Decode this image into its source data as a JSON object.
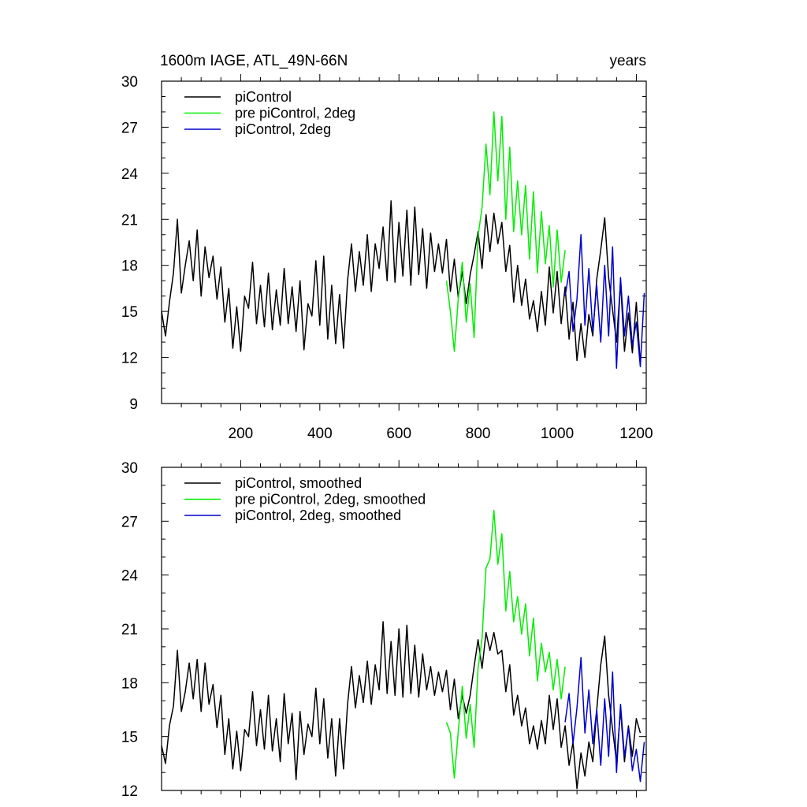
{
  "header": {
    "title_left": "1600m IAGE, ATL_49N-66N",
    "title_right": "years"
  },
  "colors": {
    "picontrol": "#000000",
    "pre_picontrol_2deg": "#00ee00",
    "picontrol_2deg": "#0000cc"
  },
  "chart_data": [
    {
      "type": "line",
      "title": "1600m IAGE, ATL_49N-66N",
      "title_right": "years",
      "xlim": [
        0,
        1225
      ],
      "ylim": [
        9,
        30
      ],
      "xticks": [
        200,
        400,
        600,
        800,
        1000,
        1200
      ],
      "xtick_labels": [
        "200",
        "400",
        "600",
        "800",
        "1000",
        "1200"
      ],
      "yticks": [
        9,
        12,
        15,
        18,
        21,
        24,
        27,
        30
      ],
      "ytick_labels": [
        "9",
        "12",
        "15",
        "18",
        "21",
        "24",
        "27",
        "30"
      ],
      "legend_position": "top-left",
      "grid": false,
      "series": [
        {
          "name": "piControl",
          "color": "#000000",
          "x": [
            0,
            10,
            20,
            30,
            40,
            50,
            60,
            70,
            80,
            90,
            100,
            110,
            120,
            130,
            140,
            150,
            160,
            170,
            180,
            190,
            200,
            210,
            220,
            230,
            240,
            250,
            260,
            270,
            280,
            290,
            300,
            310,
            320,
            330,
            340,
            350,
            360,
            370,
            380,
            390,
            400,
            410,
            420,
            430,
            440,
            450,
            460,
            470,
            480,
            490,
            500,
            510,
            520,
            530,
            540,
            550,
            560,
            570,
            580,
            590,
            600,
            610,
            620,
            630,
            640,
            650,
            660,
            670,
            680,
            690,
            700,
            710,
            720,
            730,
            740,
            750,
            760,
            770,
            780,
            790,
            800,
            810,
            820,
            830,
            840,
            850,
            860,
            870,
            880,
            890,
            900,
            910,
            920,
            930,
            940,
            950,
            960,
            970,
            980,
            990,
            1000,
            1010,
            1020,
            1030,
            1040,
            1050,
            1060,
            1070,
            1080,
            1090,
            1100,
            1110,
            1120,
            1130,
            1140,
            1150,
            1160,
            1170,
            1180,
            1190,
            1200,
            1210
          ],
          "y": [
            15.0,
            13.4,
            15.6,
            17.5,
            21.0,
            16.2,
            18.0,
            19.6,
            17.0,
            20.3,
            16.0,
            19.2,
            17.2,
            18.6,
            15.8,
            17.9,
            14.3,
            16.5,
            12.6,
            15.3,
            12.4,
            16.0,
            15.2,
            18.2,
            14.2,
            16.7,
            14.0,
            17.5,
            13.8,
            16.4,
            14.1,
            17.8,
            14.2,
            16.6,
            13.7,
            17.0,
            12.5,
            15.5,
            14.7,
            18.3,
            14.1,
            18.6,
            13.2,
            16.7,
            12.9,
            16.1,
            12.6,
            17.0,
            19.4,
            16.3,
            18.9,
            16.7,
            20.0,
            16.3,
            19.4,
            17.8,
            20.5,
            17.0,
            22.2,
            16.9,
            20.8,
            17.3,
            21.6,
            16.7,
            21.8,
            17.4,
            20.4,
            16.5,
            20.1,
            17.6,
            19.4,
            17.5,
            19.7,
            16.3,
            18.4,
            15.9,
            17.6,
            15.5,
            17.4,
            18.7,
            20.2,
            17.8,
            21.3,
            18.9,
            21.4,
            19.4,
            20.8,
            17.6,
            19.3,
            15.6,
            18.0,
            15.4,
            17.1,
            14.5,
            15.7,
            13.7,
            16.3,
            14.1,
            17.9,
            14.9,
            17.6,
            14.2,
            16.6,
            13.2,
            15.6,
            11.8,
            14.2,
            12.0,
            14.8,
            13.4,
            17.1,
            19.0,
            21.1,
            17.2,
            15.1,
            13.0,
            16.9,
            12.4,
            14.9,
            12.3,
            15.6,
            11.6
          ]
        },
        {
          "name": "pre piControl, 2deg",
          "color": "#00ee00",
          "x": [
            720,
            730,
            740,
            750,
            760,
            770,
            780,
            790,
            800,
            810,
            820,
            830,
            840,
            850,
            860,
            870,
            880,
            890,
            900,
            910,
            920,
            930,
            940,
            950,
            960,
            970,
            980,
            990,
            1000,
            1010,
            1020
          ],
          "y": [
            17.0,
            15.0,
            12.4,
            15.8,
            18.2,
            14.3,
            16.8,
            13.3,
            19.9,
            21.8,
            25.9,
            22.6,
            28.0,
            23.5,
            27.7,
            21.0,
            25.7,
            20.2,
            23.5,
            20.0,
            23.2,
            18.4,
            22.8,
            17.5,
            21.5,
            18.1,
            20.6,
            16.6,
            20.3,
            16.9,
            19.0
          ]
        },
        {
          "name": "piControl, 2deg",
          "color": "#0000cc",
          "x": [
            1020,
            1030,
            1040,
            1050,
            1060,
            1070,
            1080,
            1090,
            1100,
            1110,
            1120,
            1130,
            1140,
            1150,
            1160,
            1170,
            1180,
            1190,
            1200,
            1210,
            1220
          ],
          "y": [
            16.0,
            17.6,
            13.7,
            15.8,
            20.0,
            14.1,
            17.8,
            13.7,
            16.7,
            13.0,
            18.0,
            13.4,
            19.2,
            11.3,
            17.2,
            13.4,
            16.0,
            12.8,
            14.3,
            11.4,
            16.2
          ]
        }
      ]
    },
    {
      "type": "line",
      "xlim": [
        0,
        1225
      ],
      "ylim": [
        12,
        30
      ],
      "yticks": [
        12,
        15,
        18,
        21,
        24,
        27,
        30
      ],
      "ytick_labels": [
        "12",
        "15",
        "18",
        "21",
        "24",
        "27",
        "30"
      ],
      "xticks": [
        200,
        400,
        600,
        800,
        1000,
        1200
      ],
      "legend_position": "top-left",
      "grid": false,
      "series": [
        {
          "name": "piControl, smoothed",
          "color": "#000000",
          "x": [
            0,
            10,
            20,
            30,
            40,
            50,
            60,
            70,
            80,
            90,
            100,
            110,
            120,
            130,
            140,
            150,
            160,
            170,
            180,
            190,
            200,
            210,
            220,
            230,
            240,
            250,
            260,
            270,
            280,
            290,
            300,
            310,
            320,
            330,
            340,
            350,
            360,
            370,
            380,
            390,
            400,
            410,
            420,
            430,
            440,
            450,
            460,
            470,
            480,
            490,
            500,
            510,
            520,
            530,
            540,
            550,
            560,
            570,
            580,
            590,
            600,
            610,
            620,
            630,
            640,
            650,
            660,
            670,
            680,
            690,
            700,
            710,
            720,
            730,
            740,
            750,
            760,
            770,
            780,
            790,
            800,
            810,
            820,
            830,
            840,
            850,
            860,
            870,
            880,
            890,
            900,
            910,
            920,
            930,
            940,
            950,
            960,
            970,
            980,
            990,
            1000,
            1010,
            1020,
            1030,
            1040,
            1050,
            1060,
            1070,
            1080,
            1090,
            1100,
            1110,
            1120,
            1130,
            1140,
            1150,
            1160,
            1170,
            1180,
            1190,
            1200,
            1210
          ],
          "y": [
            14.5,
            13.5,
            15.6,
            16.7,
            19.8,
            16.4,
            17.5,
            19.1,
            17.1,
            19.3,
            16.4,
            19.1,
            16.8,
            17.9,
            15.5,
            17.3,
            14.0,
            16.0,
            13.2,
            15.3,
            13.1,
            15.4,
            15.0,
            17.5,
            14.5,
            16.5,
            14.3,
            17.3,
            14.2,
            16.0,
            13.6,
            17.4,
            14.6,
            16.3,
            12.6,
            16.4,
            14.0,
            15.7,
            15.0,
            17.7,
            14.6,
            17.1,
            13.8,
            16.0,
            12.8,
            16.0,
            13.2,
            16.8,
            18.9,
            16.6,
            18.4,
            16.9,
            19.2,
            16.8,
            19.0,
            17.6,
            21.4,
            17.4,
            20.3,
            17.3,
            21.0,
            17.2,
            21.2,
            17.4,
            20.1,
            17.2,
            19.6,
            17.6,
            18.9,
            17.3,
            18.6,
            17.5,
            18.7,
            16.5,
            18.2,
            16.0,
            17.3,
            16.3,
            17.3,
            18.9,
            20.4,
            18.8,
            20.8,
            19.8,
            20.8,
            19.6,
            19.8,
            17.5,
            19.0,
            16.2,
            17.3,
            15.6,
            16.6,
            14.6,
            15.6,
            14.3,
            15.9,
            14.6,
            17.3,
            15.4,
            17.1,
            14.4,
            15.6,
            13.4,
            14.7,
            12.1,
            14.1,
            12.8,
            14.7,
            13.6,
            16.5,
            19.0,
            20.6,
            17.3,
            15.4,
            13.6,
            16.5,
            13.6,
            15.6,
            13.9,
            16.0,
            15.2
          ]
        },
        {
          "name": "pre piControl, 2deg, smoothed",
          "color": "#00ee00",
          "x": [
            720,
            730,
            740,
            750,
            760,
            770,
            780,
            790,
            800,
            810,
            820,
            830,
            840,
            850,
            860,
            870,
            880,
            890,
            900,
            910,
            920,
            930,
            940,
            950,
            960,
            970,
            980,
            990,
            1000,
            1010,
            1020
          ],
          "y": [
            15.8,
            15.2,
            12.7,
            15.3,
            17.8,
            14.9,
            16.8,
            14.4,
            18.8,
            20.5,
            24.4,
            24.9,
            27.6,
            24.6,
            26.3,
            22.0,
            24.2,
            21.4,
            22.8,
            20.7,
            22.4,
            19.5,
            21.6,
            18.1,
            20.2,
            18.6,
            19.7,
            17.6,
            19.3,
            17.1,
            18.9
          ]
        },
        {
          "name": "piControl, 2deg, smoothed",
          "color": "#0000cc",
          "x": [
            1020,
            1030,
            1040,
            1050,
            1060,
            1070,
            1080,
            1090,
            1100,
            1110,
            1120,
            1130,
            1140,
            1150,
            1160,
            1170,
            1180,
            1190,
            1200,
            1210,
            1220
          ],
          "y": [
            15.8,
            17.4,
            14.6,
            16.6,
            19.4,
            15.2,
            17.6,
            14.6,
            16.5,
            13.4,
            17.1,
            13.9,
            18.6,
            13.0,
            16.8,
            13.9,
            15.5,
            13.1,
            14.3,
            12.5,
            14.7
          ]
        }
      ]
    }
  ]
}
